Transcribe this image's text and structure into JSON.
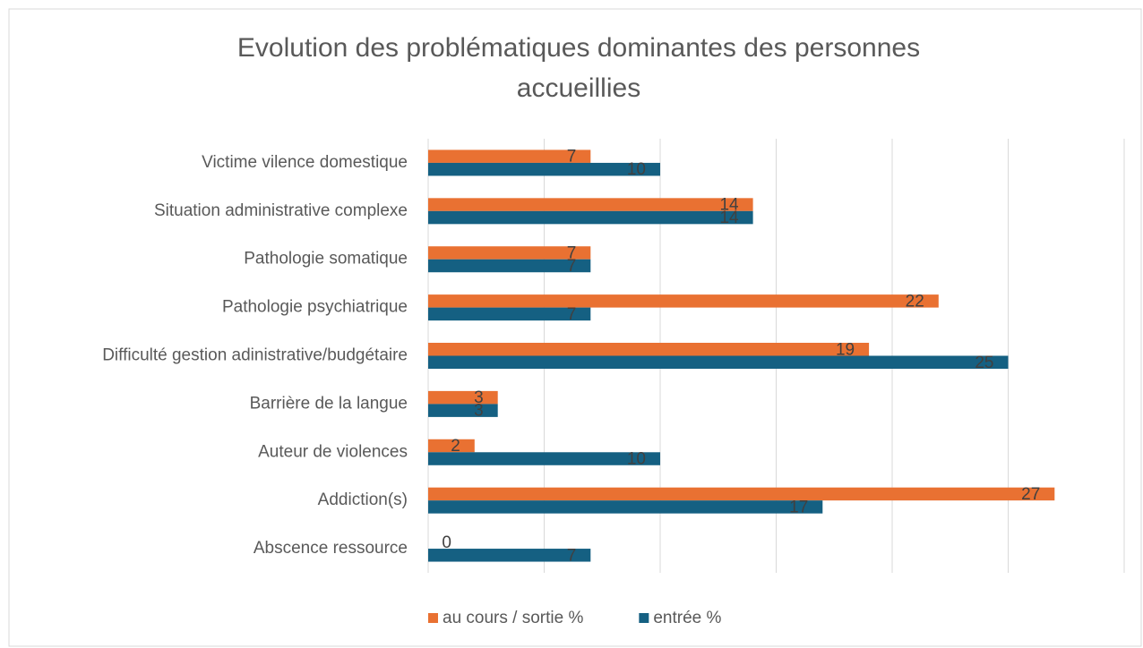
{
  "chart_data": {
    "type": "hbar",
    "title": "Evolution des problématiques dominantes des personnes accueillies",
    "categories": [
      "Victime vilence domestique",
      "Situation administrative complexe",
      "Pathologie somatique",
      "Pathologie psychiatrique",
      "Difficulté gestion adinistrative/budgétaire",
      "Barrière de la langue",
      "Auteur de violences",
      "Addiction(s)",
      "Abscence ressource"
    ],
    "series": [
      {
        "name": "au cours / sortie %",
        "color": "#e97132",
        "values": [
          7,
          14,
          7,
          22,
          19,
          3,
          2,
          27,
          0
        ]
      },
      {
        "name": "entrée %",
        "color": "#156082",
        "values": [
          10,
          14,
          7,
          7,
          25,
          3,
          10,
          17,
          7
        ]
      }
    ],
    "xlim": [
      0,
      30
    ],
    "xticks": [
      0,
      5,
      10,
      15,
      20,
      25,
      30
    ],
    "grid": true,
    "legend": "bottom"
  }
}
